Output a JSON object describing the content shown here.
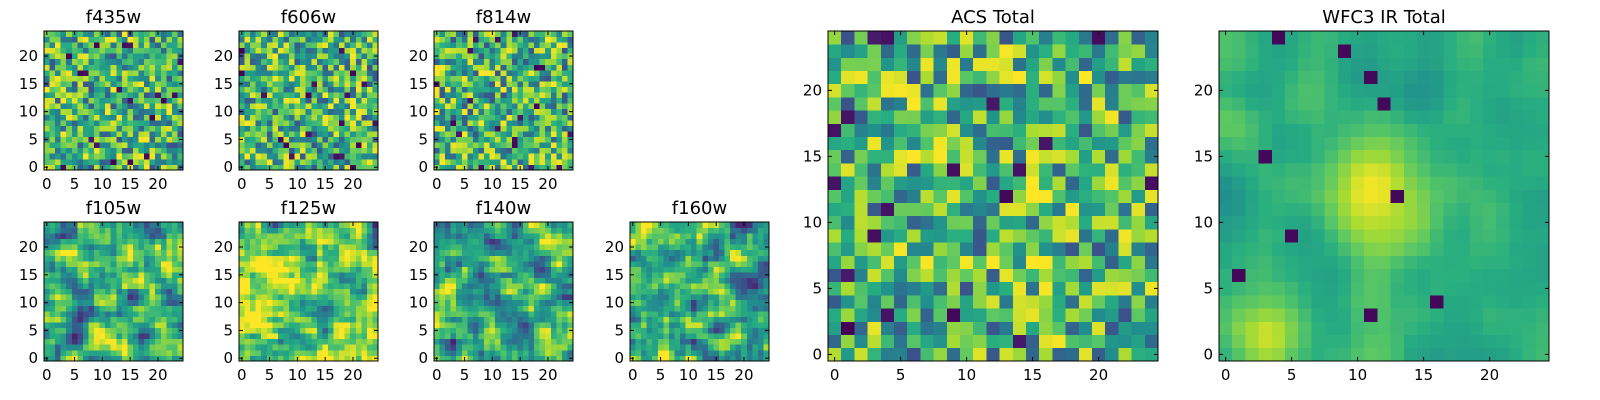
{
  "chart_data": [
    {
      "type": "heatmap",
      "title": "f435w",
      "grid_size": 25,
      "xlim": [
        0,
        24
      ],
      "ylim": [
        0,
        24
      ],
      "x_ticks": [
        0,
        5,
        10,
        15,
        20
      ],
      "y_ticks": [
        0,
        5,
        10,
        15,
        20
      ],
      "colormap": "viridis",
      "pattern": "noise",
      "seed": 11,
      "grid": false
    },
    {
      "type": "heatmap",
      "title": "f606w",
      "grid_size": 25,
      "xlim": [
        0,
        24
      ],
      "ylim": [
        0,
        24
      ],
      "x_ticks": [
        0,
        5,
        10,
        15,
        20
      ],
      "y_ticks": [
        0,
        5,
        10,
        15,
        20
      ],
      "colormap": "viridis",
      "pattern": "noise",
      "seed": 23,
      "grid": false
    },
    {
      "type": "heatmap",
      "title": "f814w",
      "grid_size": 25,
      "xlim": [
        0,
        24
      ],
      "ylim": [
        0,
        24
      ],
      "x_ticks": [
        0,
        5,
        10,
        15,
        20
      ],
      "y_ticks": [
        0,
        5,
        10,
        15,
        20
      ],
      "colormap": "viridis",
      "pattern": "noise",
      "seed": 37,
      "grid": false
    },
    {
      "type": "heatmap",
      "title": "f105w",
      "grid_size": 25,
      "xlim": [
        0,
        24
      ],
      "ylim": [
        0,
        24
      ],
      "x_ticks": [
        0,
        5,
        10,
        15,
        20
      ],
      "y_ticks": [
        0,
        5,
        10,
        15,
        20
      ],
      "colormap": "viridis",
      "pattern": "smooth",
      "seed": 41,
      "grid": false
    },
    {
      "type": "heatmap",
      "title": "f125w",
      "grid_size": 25,
      "xlim": [
        0,
        24
      ],
      "ylim": [
        0,
        24
      ],
      "x_ticks": [
        0,
        5,
        10,
        15,
        20
      ],
      "y_ticks": [
        0,
        5,
        10,
        15,
        20
      ],
      "colormap": "viridis",
      "pattern": "smooth",
      "seed": 53,
      "grid": false
    },
    {
      "type": "heatmap",
      "title": "f140w",
      "grid_size": 25,
      "xlim": [
        0,
        24
      ],
      "ylim": [
        0,
        24
      ],
      "x_ticks": [
        0,
        5,
        10,
        15,
        20
      ],
      "y_ticks": [
        0,
        5,
        10,
        15,
        20
      ],
      "colormap": "viridis",
      "pattern": "smooth",
      "seed": 67,
      "grid": false
    },
    {
      "type": "heatmap",
      "title": "f160w",
      "grid_size": 25,
      "xlim": [
        0,
        24
      ],
      "ylim": [
        0,
        24
      ],
      "x_ticks": [
        0,
        5,
        10,
        15,
        20
      ],
      "y_ticks": [
        0,
        5,
        10,
        15,
        20
      ],
      "colormap": "viridis",
      "pattern": "smooth",
      "seed": 79,
      "grid": false
    },
    {
      "type": "heatmap",
      "title": "ACS Total",
      "grid_size": 25,
      "xlim": [
        0,
        24
      ],
      "ylim": [
        0,
        24
      ],
      "x_ticks": [
        0,
        5,
        10,
        15,
        20
      ],
      "y_ticks": [
        0,
        5,
        10,
        15,
        20
      ],
      "colormap": "viridis",
      "pattern": "noise",
      "seed": 97,
      "grid": false
    },
    {
      "type": "heatmap",
      "title": "WFC3 IR Total",
      "grid_size": 25,
      "xlim": [
        0,
        24
      ],
      "ylim": [
        0,
        24
      ],
      "x_ticks": [
        0,
        5,
        10,
        15,
        20
      ],
      "y_ticks": [
        0,
        5,
        10,
        15,
        20
      ],
      "colormap": "viridis",
      "pattern": "blob",
      "seed": 101,
      "grid": false
    }
  ]
}
